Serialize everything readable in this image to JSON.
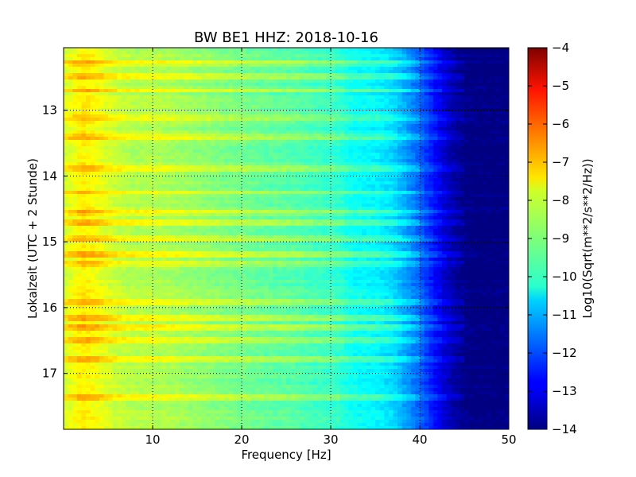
{
  "chart_data": {
    "type": "heatmap",
    "title": "BW BE1 HHZ: 2018-10-16",
    "xlabel": "Frequency [Hz]",
    "ylabel": "Lokalzeit (UTC + 2 Stunde)",
    "xlim": [
      0,
      50
    ],
    "ylim": [
      17.85,
      12.05
    ],
    "x_ticks": [
      10,
      20,
      30,
      40,
      50
    ],
    "y_ticks": [
      13,
      14,
      15,
      16,
      17
    ],
    "grid": true,
    "colormap": "jet",
    "colorbar": {
      "label": "Log10(Sqrt(m**2/s**2/Hz))",
      "vmin": -14,
      "vmax": -4,
      "ticks": [
        -4,
        -5,
        -6,
        -7,
        -8,
        -9,
        -10,
        -11,
        -12,
        -13,
        -14
      ]
    },
    "spectrum_profile": {
      "frequency_hz": [
        0,
        1,
        2,
        3,
        4,
        6,
        8,
        10,
        12,
        15,
        18,
        20,
        23,
        26,
        28,
        30,
        31,
        32,
        33,
        35,
        37,
        38,
        39,
        40,
        41,
        42,
        43,
        44,
        45,
        46,
        50
      ],
      "log10_amplitude": [
        -8.2,
        -7.9,
        -7.6,
        -7.7,
        -7.9,
        -8.3,
        -8.5,
        -8.5,
        -8.6,
        -8.8,
        -9.0,
        -9.1,
        -9.3,
        -9.4,
        -9.6,
        -9.7,
        -9.8,
        -10.1,
        -10.2,
        -10.3,
        -10.6,
        -11.0,
        -11.4,
        -11.8,
        -12.3,
        -12.8,
        -13.3,
        -13.7,
        -13.9,
        -14.0,
        -14.0
      ]
    },
    "noisy_hours": [
      12.3,
      12.5,
      12.7,
      13.1,
      13.4,
      13.9,
      14.25,
      14.55,
      14.7,
      14.95,
      15.2,
      15.35,
      15.9,
      16.15,
      16.3,
      16.5,
      16.8,
      17.35
    ]
  }
}
